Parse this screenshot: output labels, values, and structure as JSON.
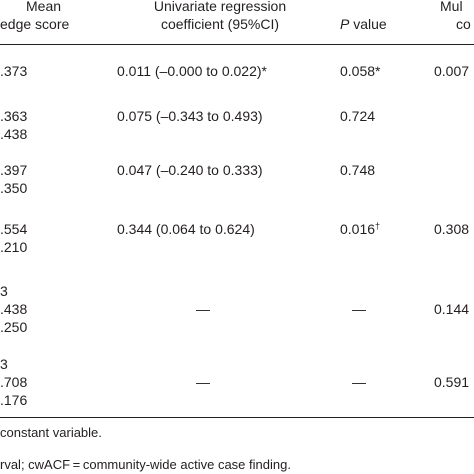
{
  "header": {
    "mean_line1": "Mean",
    "mean_line2": "edge score",
    "coef_line1": "Univariate regression",
    "coef_line2": "coefficient (95%CI)",
    "p_label": "P",
    "p_suffix": " value",
    "multi_line1": "Mul",
    "multi_line2": "co"
  },
  "rows": [
    {
      "mean": ".373",
      "coef": "0.011 (–0.000 to 0.022)*",
      "p": "0.058*",
      "p_sup": "",
      "multi": "0.007"
    },
    {
      "mean": ".363",
      "coef": "0.075 (–0.343 to 0.493)",
      "p": "0.724",
      "p_sup": "",
      "multi": ""
    },
    {
      "mean": ".438",
      "coef": "",
      "p": "",
      "p_sup": "",
      "multi": ""
    },
    {
      "mean": ".397",
      "coef": "0.047 (–0.240 to 0.333)",
      "p": "0.748",
      "p_sup": "",
      "multi": ""
    },
    {
      "mean": ".350",
      "coef": "",
      "p": "",
      "p_sup": "",
      "multi": ""
    },
    {
      "mean": ".554",
      "coef": "0.344 (0.064 to 0.624)",
      "p": "0.016",
      "p_sup": "†",
      "multi": "0.308"
    },
    {
      "mean": ".210",
      "coef": "",
      "p": "",
      "p_sup": "",
      "multi": ""
    },
    {
      "mean": "3",
      "coef": "",
      "p": "",
      "p_sup": "",
      "multi": ""
    },
    {
      "mean": ".438",
      "coef": "—",
      "p": "—",
      "p_sup": "",
      "multi": "0.144"
    },
    {
      "mean": ".250",
      "coef": "",
      "p": "",
      "p_sup": "",
      "multi": ""
    },
    {
      "mean": "3",
      "coef": "",
      "p": "",
      "p_sup": "",
      "multi": ""
    },
    {
      "mean": ".708",
      "coef": "—",
      "p": "—",
      "p_sup": "",
      "multi": "0.591"
    },
    {
      "mean": ".176",
      "coef": "",
      "p": "",
      "p_sup": "",
      "multi": ""
    }
  ],
  "footnotes": {
    "line1": "constant variable.",
    "line2": "rval; cwACF = community-wide active case finding."
  }
}
